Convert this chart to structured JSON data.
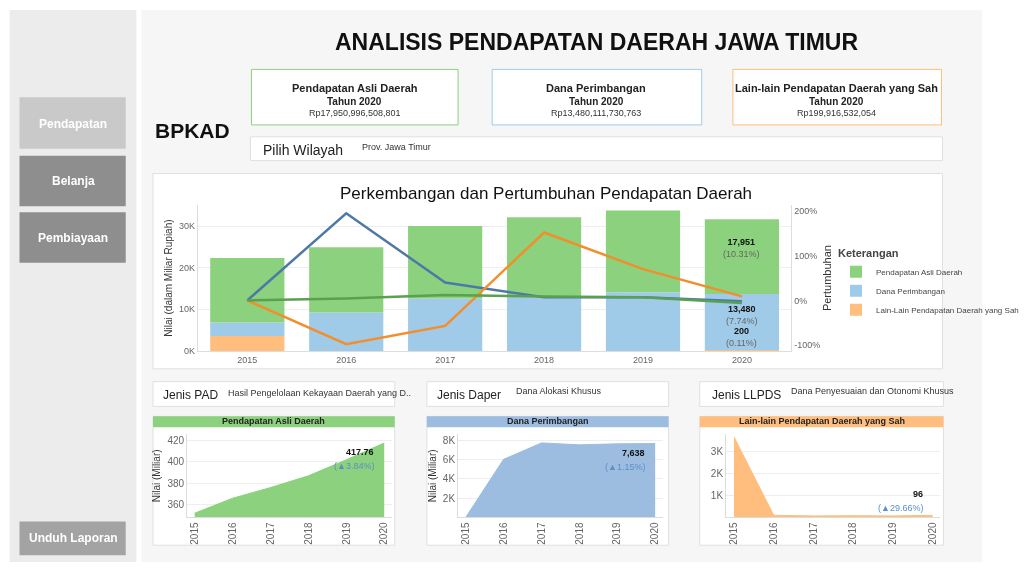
{
  "chart_data": [
    {
      "type": "other",
      "title": "ANALISIS PENDAPATAN DAERAH JAWA TIMUR",
      "annotations": [
        "Pendapatan",
        "Belanja",
        "Pembiayaan",
        "Unduh Laporan",
        "BPKAD",
        "Pendapatan Asli Daerah",
        "Tahun 2020",
        "Rp17,950,996,508,801",
        "Dana Perimbangan",
        "Tahun 2020",
        "Rp13,480,111,730,763",
        "Lain-lain Pendapatan Daerah yang Sah",
        "Tahun 2020",
        "Rp199,916,532,054",
        "Pilih Wilayah",
        "Prov. Jawa Timur",
        "Jenis PAD",
        "Hasil Pengelolaan Kekayaan Daerah yang D..",
        "Jenis Daper",
        "Dana Alokasi Khusus",
        "Jenis LLPDS",
        "Dana Penyesuaian dan Otonomi Khusus"
      ]
    },
    {
      "type": "bar",
      "title": "Perkembangan dan Pertumbuhan Pendapatan Daerah",
      "ylabel": "Nilai (dalam Miliar Rupiah)",
      "y2label": "Pertumbuhan",
      "legend_title": "Keterangan",
      "legend": "right",
      "stacked": true,
      "grid": "y",
      "marker": "none",
      "categories": [
        "2015",
        "2016",
        "2017",
        "2018",
        "2019",
        "2020"
      ],
      "ylim": [
        0,
        35000
      ],
      "yticks": [
        {
          "value": 0,
          "label": "0K"
        },
        {
          "value": 10000,
          "label": "10K"
        },
        {
          "value": 20000,
          "label": "20K"
        },
        {
          "value": 30000,
          "label": "30K"
        }
      ],
      "y2lim": [
        -113,
        213
      ],
      "y2ticks": [
        {
          "value": -100,
          "label": "-100%"
        },
        {
          "value": 0,
          "label": "0%"
        },
        {
          "value": 100,
          "label": "100%"
        },
        {
          "value": 200,
          "label": "200%"
        }
      ],
      "series": [
        {
          "name": "Lain-Lain Pendapatan Daerah yang Sah",
          "color": "#ffbe7d",
          "values": [
            3600,
            null,
            null,
            null,
            null,
            200
          ],
          "value_labels": [
            null,
            null,
            null,
            null,
            null,
            "200\n(0.11%)"
          ]
        },
        {
          "name": "Dana Perimbangan",
          "color": "#a0cbe8",
          "values": [
            3200,
            9200,
            12600,
            13200,
            14100,
            13480
          ],
          "value_labels": [
            null,
            null,
            null,
            null,
            null,
            "13,480\n(7.74%)"
          ]
        },
        {
          "name": "Pendapatan Asli Daerah",
          "color": "#8cd17d",
          "values": [
            15500,
            15700,
            17400,
            18900,
            19600,
            17951
          ],
          "value_labels": [
            null,
            null,
            null,
            null,
            null,
            "17,951\n(10.31%)"
          ]
        },
        {
          "type": "line",
          "axis": "y2",
          "color": "#4e79a7",
          "values": [
            0,
            195,
            40,
            7,
            7,
            -2
          ]
        },
        {
          "type": "line",
          "axis": "y2",
          "color": "#f28e2b",
          "values": [
            0,
            -98,
            -57,
            152,
            70,
            9
          ]
        },
        {
          "type": "line",
          "axis": "y2",
          "color": "#59a14f",
          "values": [
            0,
            4,
            12,
            9,
            7,
            -6
          ]
        }
      ]
    },
    {
      "type": "area",
      "title": "Pendapatan Asli Daerah",
      "ylabel": "Nilai (Miliar)",
      "grid": "y",
      "categories": [
        "2015",
        "2016",
        "2017",
        "2018",
        "2019",
        "2020"
      ],
      "ylim": [
        348,
        426
      ],
      "yticks": [
        360,
        380,
        400,
        420
      ],
      "series": [
        {
          "color": "#8cd17d",
          "values": [
            352,
            366,
            376,
            387,
            402,
            417.76
          ],
          "value_labels": [
            null,
            null,
            null,
            null,
            null,
            "417.76"
          ]
        }
      ],
      "annotations": [
        {
          "text": "(▲3.84%)",
          "x": "2020",
          "y": 417.76
        }
      ]
    },
    {
      "type": "area",
      "title": "Dana Perimbangan",
      "ylabel": "Nilai (Miliar)",
      "grid": "y",
      "categories": [
        "2015",
        "2016",
        "2017",
        "2018",
        "2019",
        "2020"
      ],
      "ylim": [
        0,
        8600
      ],
      "yticks": [
        {
          "value": 2000,
          "label": "2K"
        },
        {
          "value": 4000,
          "label": "4K"
        },
        {
          "value": 6000,
          "label": "6K"
        },
        {
          "value": 8000,
          "label": "8K"
        }
      ],
      "series": [
        {
          "color": "#9dbde0",
          "values": [
            0,
            6000,
            7700,
            7500,
            7600,
            7638
          ],
          "value_labels": [
            null,
            null,
            null,
            null,
            null,
            "7,638"
          ]
        }
      ],
      "annotations": [
        {
          "text": "(▲1.15%)",
          "x": "2020",
          "y": 7638
        }
      ]
    },
    {
      "type": "area",
      "title": "Lain-lain Pendapatan Daerah yang Sah",
      "grid": "y",
      "categories": [
        "2015",
        "2016",
        "2017",
        "2018",
        "2019",
        "2020"
      ],
      "ylim": [
        0,
        3800
      ],
      "yticks": [
        {
          "value": 1000,
          "label": "1K"
        },
        {
          "value": 2000,
          "label": "2K"
        },
        {
          "value": 3000,
          "label": "3K"
        }
      ],
      "series": [
        {
          "color": "#ffbe7d",
          "values": [
            3670,
            100,
            70,
            80,
            70,
            96
          ],
          "value_labels": [
            null,
            null,
            null,
            null,
            null,
            "96"
          ]
        }
      ],
      "annotations": [
        {
          "text": "(▲29.66%)",
          "x": "2020",
          "y": 96
        }
      ]
    }
  ]
}
